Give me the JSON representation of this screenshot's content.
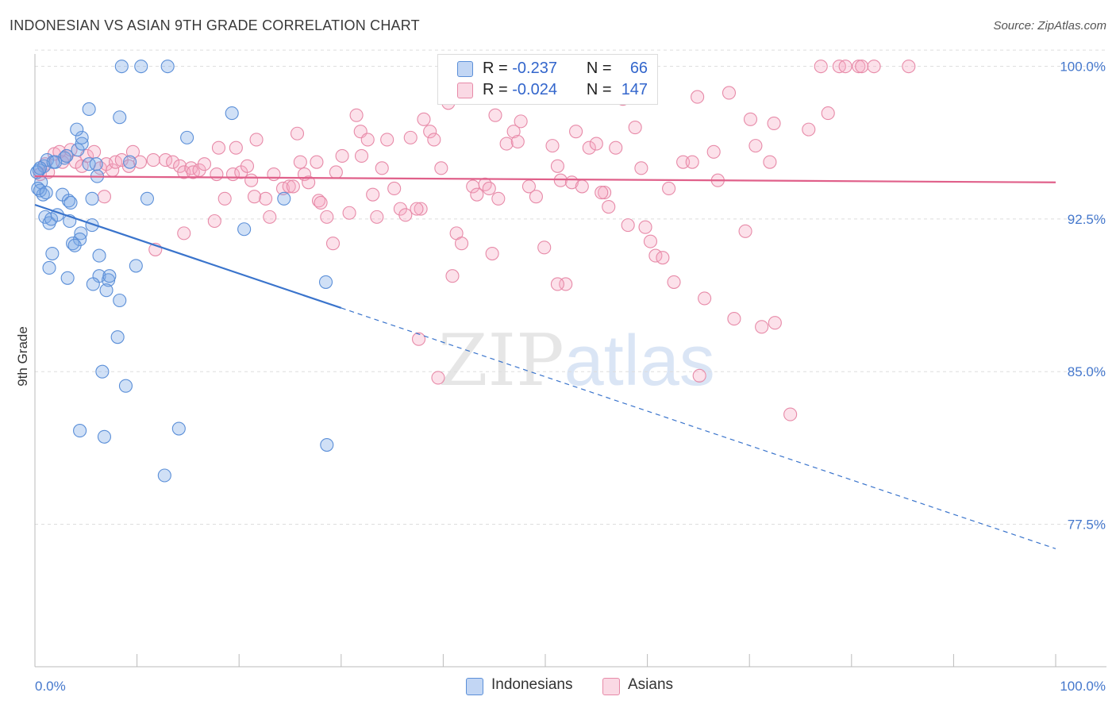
{
  "title": "INDONESIAN VS ASIAN 9TH GRADE CORRELATION CHART",
  "source": "Source: ZipAtlas.com",
  "watermark": {
    "zip": "ZIP",
    "atlas": "atlas"
  },
  "legend": {
    "rows": [
      {
        "r_label": "R =",
        "r_value": "-0.237",
        "n_label": "N =",
        "n_value": "66"
      },
      {
        "r_label": "R =",
        "r_value": "-0.024",
        "n_label": "N =",
        "n_value": "147"
      }
    ]
  },
  "bottom_legend": {
    "indonesians": "Indonesians",
    "asians": "Asians"
  },
  "colors": {
    "indonesians_fill": "rgba(120,165,230,0.35)",
    "indonesians_stroke": "#5b8fd8",
    "indonesians_line": "#3a74cc",
    "asians_fill": "rgba(245,170,195,0.35)",
    "asians_stroke": "#e78aa8",
    "asians_line": "#e0608a",
    "axis_text": "#4477cc",
    "grid": "#dddddd"
  },
  "chart_data": {
    "type": "scatter",
    "title": "INDONESIAN VS ASIAN 9TH GRADE CORRELATION CHART",
    "xlabel": "",
    "ylabel": "9th Grade",
    "xlim": [
      0,
      100
    ],
    "ylim": [
      70.5,
      101
    ],
    "x_tick_labels": [
      "0.0%",
      "100.0%"
    ],
    "y_ticks": [
      77.5,
      85.0,
      92.5,
      100.0
    ],
    "y_tick_labels": [
      "77.5%",
      "85.0%",
      "92.5%",
      "100.0%"
    ],
    "grid": true,
    "legend_position": "top-center",
    "series": [
      {
        "name": "Indonesians",
        "r": -0.237,
        "n": 66,
        "trend": {
          "x0": 0,
          "y0": 93.2,
          "x1": 100,
          "y1": 76.3,
          "solid_until": 30
        },
        "points": [
          [
            0.4,
            94.9
          ],
          [
            0.6,
            94.3
          ],
          [
            0.5,
            93.9
          ],
          [
            0.8,
            93.7
          ],
          [
            0.9,
            95.1
          ],
          [
            1.2,
            95.4
          ],
          [
            1.0,
            92.6
          ],
          [
            1.4,
            92.3
          ],
          [
            1.6,
            92.5
          ],
          [
            2.2,
            92.7
          ],
          [
            1.7,
            90.8
          ],
          [
            1.4,
            90.1
          ],
          [
            3.2,
            89.6
          ],
          [
            2.7,
            93.7
          ],
          [
            3.3,
            93.4
          ],
          [
            3.5,
            93.3
          ],
          [
            3.4,
            92.4
          ],
          [
            1.8,
            95.3
          ],
          [
            2.9,
            95.5
          ],
          [
            4.2,
            95.9
          ],
          [
            4.6,
            96.2
          ],
          [
            5.3,
            95.2
          ],
          [
            6.0,
            95.2
          ],
          [
            4.6,
            96.5
          ],
          [
            4.1,
            96.9
          ],
          [
            5.3,
            97.9
          ],
          [
            5.6,
            93.5
          ],
          [
            5.6,
            92.2
          ],
          [
            4.5,
            91.8
          ],
          [
            4.4,
            91.5
          ],
          [
            3.7,
            91.3
          ],
          [
            3.9,
            91.2
          ],
          [
            6.3,
            90.7
          ],
          [
            6.3,
            89.7
          ],
          [
            7.2,
            89.5
          ],
          [
            7.3,
            89.7
          ],
          [
            5.7,
            89.3
          ],
          [
            7.0,
            89.0
          ],
          [
            8.3,
            88.5
          ],
          [
            9.9,
            90.2
          ],
          [
            8.1,
            86.7
          ],
          [
            6.6,
            85.0
          ],
          [
            8.9,
            84.3
          ],
          [
            4.4,
            82.1
          ],
          [
            6.8,
            81.8
          ],
          [
            14.1,
            82.2
          ],
          [
            12.7,
            79.9
          ],
          [
            8.5,
            100.0
          ],
          [
            10.4,
            100.0
          ],
          [
            13.0,
            100.0
          ],
          [
            8.3,
            97.5
          ],
          [
            14.9,
            96.5
          ],
          [
            19.3,
            97.7
          ],
          [
            11.0,
            93.5
          ],
          [
            9.3,
            95.3
          ],
          [
            20.5,
            92.0
          ],
          [
            24.4,
            93.5
          ],
          [
            28.5,
            89.4
          ],
          [
            28.6,
            81.4
          ],
          [
            0.3,
            94.0
          ],
          [
            0.2,
            94.8
          ],
          [
            0.5,
            95.0
          ],
          [
            2.0,
            95.3
          ],
          [
            6.1,
            94.6
          ],
          [
            3.1,
            95.6
          ],
          [
            1.1,
            93.8
          ]
        ]
      },
      {
        "name": "Asians",
        "r": -0.024,
        "n": 147,
        "trend": {
          "x0": 0,
          "y0": 94.6,
          "x1": 100,
          "y1": 94.3
        },
        "points": [
          [
            0.5,
            94.7
          ],
          [
            1.0,
            95.2
          ],
          [
            1.3,
            94.8
          ],
          [
            1.9,
            95.7
          ],
          [
            2.4,
            95.8
          ],
          [
            2.7,
            95.3
          ],
          [
            3.1,
            95.6
          ],
          [
            3.5,
            95.9
          ],
          [
            4.0,
            95.3
          ],
          [
            4.6,
            95.1
          ],
          [
            5.1,
            95.6
          ],
          [
            5.8,
            95.8
          ],
          [
            6.4,
            95.0
          ],
          [
            7.0,
            95.2
          ],
          [
            7.6,
            94.9
          ],
          [
            7.9,
            95.3
          ],
          [
            8.5,
            95.4
          ],
          [
            9.2,
            95.1
          ],
          [
            9.6,
            95.8
          ],
          [
            10.3,
            95.3
          ],
          [
            11.6,
            95.4
          ],
          [
            12.8,
            95.4
          ],
          [
            13.5,
            95.3
          ],
          [
            14.2,
            95.1
          ],
          [
            14.6,
            94.8
          ],
          [
            15.3,
            95.0
          ],
          [
            15.5,
            94.8
          ],
          [
            16.1,
            94.9
          ],
          [
            16.6,
            95.2
          ],
          [
            18.0,
            96.0
          ],
          [
            17.8,
            94.7
          ],
          [
            18.6,
            93.5
          ],
          [
            19.7,
            96.0
          ],
          [
            19.4,
            94.7
          ],
          [
            20.2,
            94.8
          ],
          [
            20.8,
            95.1
          ],
          [
            21.2,
            94.4
          ],
          [
            21.7,
            96.4
          ],
          [
            22.6,
            93.5
          ],
          [
            23.0,
            92.6
          ],
          [
            23.4,
            94.7
          ],
          [
            24.3,
            94.0
          ],
          [
            24.9,
            94.1
          ],
          [
            25.3,
            94.1
          ],
          [
            25.7,
            96.7
          ],
          [
            26.0,
            95.3
          ],
          [
            26.4,
            94.7
          ],
          [
            27.6,
            95.3
          ],
          [
            27.8,
            93.4
          ],
          [
            28.0,
            93.3
          ],
          [
            28.6,
            92.6
          ],
          [
            29.5,
            94.8
          ],
          [
            29.2,
            91.3
          ],
          [
            30.1,
            95.6
          ],
          [
            30.8,
            92.8
          ],
          [
            31.5,
            97.6
          ],
          [
            31.9,
            96.8
          ],
          [
            32.6,
            96.4
          ],
          [
            33.1,
            93.7
          ],
          [
            33.5,
            92.6
          ],
          [
            34.0,
            95.0
          ],
          [
            34.5,
            96.4
          ],
          [
            35.2,
            94.0
          ],
          [
            35.8,
            93.0
          ],
          [
            36.3,
            92.7
          ],
          [
            36.8,
            96.5
          ],
          [
            37.8,
            93.0
          ],
          [
            37.4,
            93.0
          ],
          [
            38.1,
            97.4
          ],
          [
            38.7,
            96.8
          ],
          [
            39.1,
            96.4
          ],
          [
            39.8,
            95.0
          ],
          [
            40.5,
            98.2
          ],
          [
            40.9,
            89.7
          ],
          [
            41.3,
            91.8
          ],
          [
            41.8,
            91.3
          ],
          [
            42.9,
            94.1
          ],
          [
            43.3,
            93.7
          ],
          [
            44.1,
            94.2
          ],
          [
            44.8,
            90.8
          ],
          [
            45.4,
            93.5
          ],
          [
            45.1,
            97.6
          ],
          [
            46.2,
            96.2
          ],
          [
            46.9,
            96.8
          ],
          [
            47.3,
            96.3
          ],
          [
            47.6,
            97.3
          ],
          [
            48.4,
            94.1
          ],
          [
            49.1,
            93.6
          ],
          [
            49.9,
            91.1
          ],
          [
            50.7,
            96.1
          ],
          [
            51.2,
            95.1
          ],
          [
            51.5,
            94.4
          ],
          [
            52.0,
            89.3
          ],
          [
            52.6,
            94.3
          ],
          [
            53.0,
            96.8
          ],
          [
            53.6,
            94.1
          ],
          [
            54.3,
            96.0
          ],
          [
            55.0,
            96.2
          ],
          [
            55.8,
            93.8
          ],
          [
            56.2,
            93.1
          ],
          [
            56.9,
            96.0
          ],
          [
            57.6,
            98.4
          ],
          [
            58.1,
            92.2
          ],
          [
            58.8,
            97.0
          ],
          [
            59.4,
            95.0
          ],
          [
            60.3,
            91.4
          ],
          [
            60.8,
            90.7
          ],
          [
            61.5,
            90.6
          ],
          [
            62.1,
            94.0
          ],
          [
            62.6,
            89.4
          ],
          [
            63.5,
            95.3
          ],
          [
            64.4,
            95.3
          ],
          [
            64.9,
            98.5
          ],
          [
            65.1,
            84.8
          ],
          [
            65.6,
            88.6
          ],
          [
            66.5,
            95.8
          ],
          [
            66.9,
            94.4
          ],
          [
            68.0,
            98.7
          ],
          [
            68.5,
            87.6
          ],
          [
            69.6,
            91.9
          ],
          [
            70.1,
            97.4
          ],
          [
            70.6,
            96.1
          ],
          [
            71.2,
            87.2
          ],
          [
            72.0,
            95.3
          ],
          [
            72.4,
            97.2
          ],
          [
            72.5,
            87.4
          ],
          [
            74.0,
            82.9
          ],
          [
            75.8,
            96.9
          ],
          [
            77.0,
            100.0
          ],
          [
            77.7,
            97.7
          ],
          [
            78.8,
            100.0
          ],
          [
            79.4,
            100.0
          ],
          [
            80.7,
            100.0
          ],
          [
            81.0,
            100.0
          ],
          [
            82.2,
            100.0
          ],
          [
            85.6,
            100.0
          ],
          [
            37.6,
            86.6
          ],
          [
            39.5,
            84.7
          ],
          [
            51.2,
            89.3
          ],
          [
            6.8,
            93.6
          ],
          [
            14.6,
            91.8
          ],
          [
            11.8,
            91.0
          ],
          [
            17.6,
            92.4
          ],
          [
            59.8,
            92.1
          ],
          [
            55.5,
            93.8
          ],
          [
            44.5,
            94.0
          ],
          [
            21.5,
            93.6
          ],
          [
            26.8,
            94.3
          ],
          [
            32.0,
            95.6
          ]
        ]
      }
    ]
  }
}
